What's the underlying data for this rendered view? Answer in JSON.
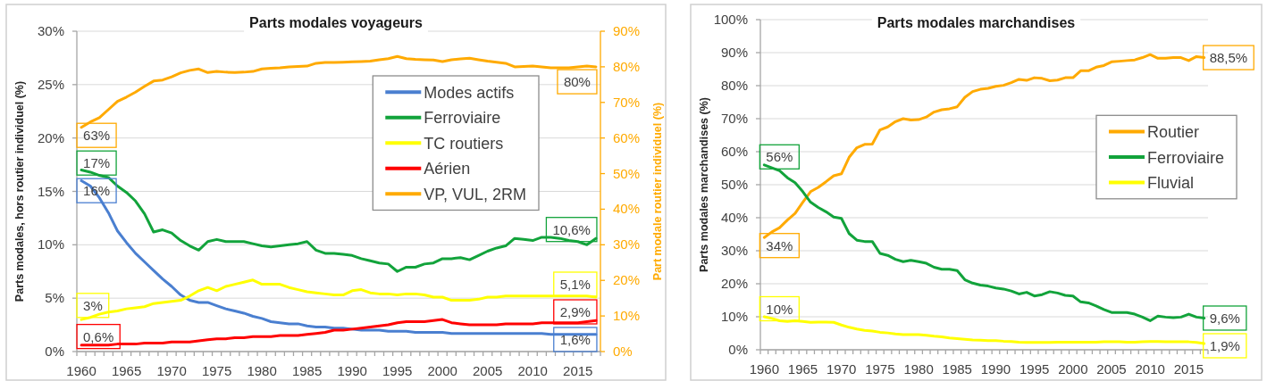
{
  "chart_data": [
    {
      "type": "line",
      "title": "Parts modales voyageurs",
      "ylabel": "Parts modales, hors routier individuel (%)",
      "y2label": "Part modale routier individuel (%)",
      "categories": [
        "1960",
        null,
        null,
        null,
        null,
        "1965",
        null,
        null,
        null,
        null,
        "1970",
        null,
        null,
        null,
        null,
        "1975",
        null,
        null,
        null,
        null,
        "1980",
        null,
        null,
        null,
        null,
        "1985",
        null,
        null,
        null,
        null,
        "1990",
        null,
        null,
        null,
        null,
        "1995",
        null,
        null,
        null,
        null,
        "2000",
        null,
        null,
        null,
        null,
        "2005",
        null,
        null,
        null,
        null,
        "2010",
        null,
        null,
        null,
        null,
        "2015",
        null,
        null
      ],
      "ylim": [
        0,
        30
      ],
      "yticks": [
        {
          "value": 0,
          "label": "0%"
        },
        {
          "value": 5,
          "label": "5%"
        },
        {
          "value": 10,
          "label": "10%"
        },
        {
          "value": 15,
          "label": "15%"
        },
        {
          "value": 20,
          "label": "20%"
        },
        {
          "value": 25,
          "label": "25%"
        },
        {
          "value": 30,
          "label": "30%"
        }
      ],
      "y2lim": [
        0,
        90
      ],
      "y2ticks": [
        {
          "value": 0,
          "label": "0%"
        },
        {
          "value": 10,
          "label": "10%"
        },
        {
          "value": 20,
          "label": "20%"
        },
        {
          "value": 30,
          "label": "30%"
        },
        {
          "value": 40,
          "label": "40%"
        },
        {
          "value": 50,
          "label": "50%"
        },
        {
          "value": 60,
          "label": "60%"
        },
        {
          "value": 70,
          "label": "70%"
        },
        {
          "value": 80,
          "label": "80%"
        },
        {
          "value": 90,
          "label": "90%"
        }
      ],
      "grid": "y",
      "legend": "top right",
      "series": [
        {
          "name": "Modes actifs",
          "color": "#4a7fd0",
          "values": [
            16,
            15.5,
            14.4,
            13.0,
            11.3,
            10.2,
            9.2,
            8.4,
            7.6,
            6.8,
            6.1,
            5.3,
            4.8,
            4.6,
            4.6,
            4.3,
            4.0,
            3.8,
            3.6,
            3.3,
            3.1,
            2.8,
            2.7,
            2.6,
            2.6,
            2.4,
            2.3,
            2.3,
            2.2,
            2.2,
            2.1,
            2.0,
            2.0,
            2.0,
            1.9,
            1.9,
            1.9,
            1.8,
            1.8,
            1.8,
            1.8,
            1.7,
            1.7,
            1.7,
            1.7,
            1.7,
            1.7,
            1.7,
            1.7,
            1.7,
            1.7,
            1.7,
            1.6,
            1.6,
            1.6,
            1.6,
            1.6,
            1.6
          ],
          "value_labels": [
            "16%",
            null,
            null,
            null,
            null,
            null,
            null,
            null,
            null,
            null,
            null,
            null,
            null,
            null,
            null,
            null,
            null,
            null,
            null,
            null,
            null,
            null,
            null,
            null,
            null,
            null,
            null,
            null,
            null,
            null,
            null,
            null,
            null,
            null,
            null,
            null,
            null,
            null,
            null,
            null,
            null,
            null,
            null,
            null,
            null,
            null,
            null,
            null,
            null,
            null,
            null,
            null,
            null,
            null,
            null,
            null,
            null,
            "1,6%"
          ]
        },
        {
          "name": "Ferroviaire",
          "color": "#12a33b",
          "values": [
            17,
            16.8,
            16.5,
            16.3,
            15.5,
            14.9,
            14.1,
            12.9,
            11.2,
            11.4,
            11.1,
            10.4,
            9.9,
            9.5,
            10.3,
            10.5,
            10.3,
            10.3,
            10.3,
            10.1,
            9.9,
            9.8,
            9.9,
            10.0,
            10.1,
            10.3,
            9.5,
            9.2,
            9.2,
            9.1,
            9.0,
            8.7,
            8.5,
            8.3,
            8.2,
            7.5,
            7.9,
            7.9,
            8.2,
            8.3,
            8.7,
            8.7,
            8.8,
            8.6,
            9.0,
            9.4,
            9.7,
            9.9,
            10.6,
            10.5,
            10.4,
            10.7,
            10.7,
            10.6,
            10.4,
            10.3,
            10.0,
            10.6
          ],
          "value_labels": [
            "17%",
            null,
            null,
            null,
            null,
            null,
            null,
            null,
            null,
            null,
            null,
            null,
            null,
            null,
            null,
            null,
            null,
            null,
            null,
            null,
            null,
            null,
            null,
            null,
            null,
            null,
            null,
            null,
            null,
            null,
            null,
            null,
            null,
            null,
            null,
            null,
            null,
            null,
            null,
            null,
            null,
            null,
            null,
            null,
            null,
            null,
            null,
            null,
            null,
            null,
            null,
            null,
            null,
            null,
            null,
            null,
            null,
            "10,6%"
          ]
        },
        {
          "name": "TC routiers",
          "color": "#ffff00",
          "values": [
            3,
            3.2,
            3.5,
            3.7,
            3.8,
            4.0,
            4.1,
            4.2,
            4.5,
            4.6,
            4.7,
            4.8,
            5.2,
            5.7,
            6.0,
            5.7,
            6.1,
            6.3,
            6.5,
            6.7,
            6.3,
            6.3,
            6.3,
            6.0,
            5.8,
            5.6,
            5.5,
            5.4,
            5.3,
            5.3,
            5.7,
            5.8,
            5.5,
            5.4,
            5.4,
            5.3,
            5.4,
            5.4,
            5.3,
            5.1,
            5.1,
            4.8,
            4.8,
            4.8,
            4.9,
            5.1,
            5.1,
            5.2,
            5.2,
            5.2,
            5.2,
            5.2,
            5.2,
            5.2,
            5.2,
            5.2,
            5.2,
            5.1
          ],
          "value_labels": [
            "3%",
            null,
            null,
            null,
            null,
            null,
            null,
            null,
            null,
            null,
            null,
            null,
            null,
            null,
            null,
            null,
            null,
            null,
            null,
            null,
            null,
            null,
            null,
            null,
            null,
            null,
            null,
            null,
            null,
            null,
            null,
            null,
            null,
            null,
            null,
            null,
            null,
            null,
            null,
            null,
            null,
            null,
            null,
            null,
            null,
            null,
            null,
            null,
            null,
            null,
            null,
            null,
            null,
            null,
            null,
            null,
            null,
            "5,1%"
          ]
        },
        {
          "name": "Aérien",
          "color": "#ff0000",
          "values": [
            0.6,
            0.6,
            0.6,
            0.6,
            0.7,
            0.7,
            0.7,
            0.8,
            0.8,
            0.8,
            0.9,
            0.9,
            0.9,
            1.0,
            1.1,
            1.2,
            1.2,
            1.3,
            1.3,
            1.4,
            1.4,
            1.4,
            1.5,
            1.5,
            1.5,
            1.6,
            1.7,
            1.8,
            2.0,
            2.0,
            2.1,
            2.2,
            2.3,
            2.4,
            2.5,
            2.7,
            2.8,
            2.8,
            2.8,
            2.9,
            3.0,
            2.7,
            2.6,
            2.5,
            2.5,
            2.5,
            2.5,
            2.6,
            2.6,
            2.6,
            2.6,
            2.7,
            2.7,
            2.7,
            2.7,
            2.7,
            2.8,
            2.9
          ],
          "value_labels": [
            "0,6%",
            null,
            null,
            null,
            null,
            null,
            null,
            null,
            null,
            null,
            null,
            null,
            null,
            null,
            null,
            null,
            null,
            null,
            null,
            null,
            null,
            null,
            null,
            null,
            null,
            null,
            null,
            null,
            null,
            null,
            null,
            null,
            null,
            null,
            null,
            null,
            null,
            null,
            null,
            null,
            null,
            null,
            null,
            null,
            null,
            null,
            null,
            null,
            null,
            null,
            null,
            null,
            null,
            null,
            null,
            null,
            null,
            "2,9%"
          ]
        },
        {
          "name": "VP, VUL, 2RM",
          "color": "#ffaa00",
          "axis": "y2",
          "values": [
            63,
            64.5,
            65.7,
            68.0,
            70.3,
            71.5,
            72.9,
            74.5,
            76.0,
            76.3,
            77.2,
            78.3,
            79.0,
            79.4,
            78.4,
            78.7,
            78.5,
            78.4,
            78.5,
            78.7,
            79.4,
            79.6,
            79.7,
            80.0,
            80.1,
            80.2,
            81.0,
            81.2,
            81.2,
            81.3,
            81.4,
            81.5,
            81.6,
            82.0,
            82.3,
            82.9,
            82.3,
            82.1,
            82.0,
            81.9,
            81.5,
            82.0,
            82.2,
            82.4,
            82.0,
            81.6,
            81.3,
            81.0,
            80.0,
            80.1,
            80.2,
            80.0,
            79.7,
            79.7,
            79.7,
            80.0,
            80.2,
            80
          ],
          "value_labels": [
            "63%",
            null,
            null,
            null,
            null,
            null,
            null,
            null,
            null,
            null,
            null,
            null,
            null,
            null,
            null,
            null,
            null,
            null,
            null,
            null,
            null,
            null,
            null,
            null,
            null,
            null,
            null,
            null,
            null,
            null,
            null,
            null,
            null,
            null,
            null,
            null,
            null,
            null,
            null,
            null,
            null,
            null,
            null,
            null,
            null,
            null,
            null,
            null,
            null,
            null,
            null,
            null,
            null,
            null,
            null,
            null,
            null,
            "80%"
          ]
        }
      ]
    },
    {
      "type": "line",
      "title": "Parts modales marchandises",
      "ylabel": "Parts modales marchandises (%)",
      "categories": [
        "1960",
        null,
        null,
        null,
        null,
        "1965",
        null,
        null,
        null,
        null,
        "1970",
        null,
        null,
        null,
        null,
        "1975",
        null,
        null,
        null,
        null,
        "1980",
        null,
        null,
        null,
        null,
        "1985",
        null,
        null,
        null,
        null,
        "1990",
        null,
        null,
        null,
        null,
        "1995",
        null,
        null,
        null,
        null,
        "2000",
        null,
        null,
        null,
        null,
        "2005",
        null,
        null,
        null,
        null,
        "2010",
        null,
        null,
        null,
        null,
        "2015",
        null,
        null
      ],
      "ylim": [
        0,
        100
      ],
      "yticks": [
        {
          "value": 0,
          "label": "0%"
        },
        {
          "value": 10,
          "label": "10%"
        },
        {
          "value": 20,
          "label": "20%"
        },
        {
          "value": 30,
          "label": "30%"
        },
        {
          "value": 40,
          "label": "40%"
        },
        {
          "value": 50,
          "label": "50%"
        },
        {
          "value": 60,
          "label": "60%"
        },
        {
          "value": 70,
          "label": "70%"
        },
        {
          "value": 80,
          "label": "80%"
        },
        {
          "value": 90,
          "label": "90%"
        },
        {
          "value": 100,
          "label": "100%"
        }
      ],
      "grid": "y",
      "legend": "right",
      "series": [
        {
          "name": "Routier",
          "color": "#ffaa00",
          "values": [
            34,
            35.7,
            37.0,
            39.3,
            41.3,
            44.7,
            47.9,
            49.2,
            50.9,
            52.7,
            53.3,
            58.3,
            61.2,
            62.2,
            62.3,
            66.6,
            67.5,
            69.1,
            70.0,
            69.6,
            69.7,
            70.5,
            72.0,
            72.7,
            73.0,
            73.6,
            76.5,
            78.2,
            78.9,
            79.2,
            79.8,
            80.1,
            80.9,
            81.9,
            81.6,
            82.4,
            82.2,
            81.5,
            81.7,
            82.4,
            82.4,
            84.5,
            84.5,
            85.6,
            86.1,
            87.2,
            87.4,
            87.6,
            87.8,
            88.5,
            89.4,
            88.3,
            88.3,
            88.5,
            88.5,
            87.6,
            88.8,
            88.5
          ],
          "value_labels": [
            "34%",
            null,
            null,
            null,
            null,
            null,
            null,
            null,
            null,
            null,
            null,
            null,
            null,
            null,
            null,
            null,
            null,
            null,
            null,
            null,
            null,
            null,
            null,
            null,
            null,
            null,
            null,
            null,
            null,
            null,
            null,
            null,
            null,
            null,
            null,
            null,
            null,
            null,
            null,
            null,
            null,
            null,
            null,
            null,
            null,
            null,
            null,
            null,
            null,
            null,
            null,
            null,
            null,
            null,
            null,
            null,
            null,
            "88,5%"
          ]
        },
        {
          "name": "Ferroviaire",
          "color": "#12a33b",
          "values": [
            56,
            55.1,
            54.2,
            52.1,
            50.6,
            47.9,
            44.7,
            43.1,
            41.8,
            40.2,
            39.8,
            35.2,
            33.2,
            32.8,
            32.8,
            29.2,
            28.6,
            27.4,
            26.7,
            27.1,
            26.7,
            26.2,
            25.0,
            24.4,
            24.4,
            24.0,
            21.2,
            20.2,
            19.6,
            19.3,
            18.7,
            18.4,
            17.8,
            16.9,
            17.4,
            16.3,
            16.7,
            17.6,
            17.2,
            16.5,
            16.3,
            14.5,
            14.2,
            13.3,
            12.2,
            11.3,
            11.3,
            11.3,
            10.8,
            9.9,
            8.8,
            10.2,
            9.9,
            9.7,
            9.9,
            10.8,
            9.9,
            9.6
          ],
          "value_labels": [
            "56%",
            null,
            null,
            null,
            null,
            null,
            null,
            null,
            null,
            null,
            null,
            null,
            null,
            null,
            null,
            null,
            null,
            null,
            null,
            null,
            null,
            null,
            null,
            null,
            null,
            null,
            null,
            null,
            null,
            null,
            null,
            null,
            null,
            null,
            null,
            null,
            null,
            null,
            null,
            null,
            null,
            null,
            null,
            null,
            null,
            null,
            null,
            null,
            null,
            null,
            null,
            null,
            null,
            null,
            null,
            null,
            null,
            "9,6%"
          ]
        },
        {
          "name": "Fluvial",
          "color": "#ffff00",
          "values": [
            10,
            9.5,
            8.8,
            8.6,
            8.8,
            8.6,
            8.3,
            8.4,
            8.4,
            8.3,
            7.5,
            6.8,
            6.3,
            5.9,
            5.7,
            5.3,
            5.1,
            4.8,
            4.6,
            4.6,
            4.6,
            4.4,
            4.1,
            3.9,
            3.6,
            3.4,
            3.2,
            3.0,
            2.9,
            2.8,
            2.8,
            2.6,
            2.5,
            2.3,
            2.2,
            2.2,
            2.2,
            2.2,
            2.3,
            2.3,
            2.3,
            2.3,
            2.3,
            2.3,
            2.4,
            2.4,
            2.4,
            2.3,
            2.3,
            2.4,
            2.5,
            2.5,
            2.4,
            2.4,
            2.4,
            2.4,
            2.2,
            1.9
          ],
          "value_labels": [
            "10%",
            null,
            null,
            null,
            null,
            null,
            null,
            null,
            null,
            null,
            null,
            null,
            null,
            null,
            null,
            null,
            null,
            null,
            null,
            null,
            null,
            null,
            null,
            null,
            null,
            null,
            null,
            null,
            null,
            null,
            null,
            null,
            null,
            null,
            null,
            null,
            null,
            null,
            null,
            null,
            null,
            null,
            null,
            null,
            null,
            null,
            null,
            null,
            null,
            null,
            null,
            null,
            null,
            null,
            null,
            null,
            null,
            "1,9%"
          ]
        }
      ]
    }
  ]
}
